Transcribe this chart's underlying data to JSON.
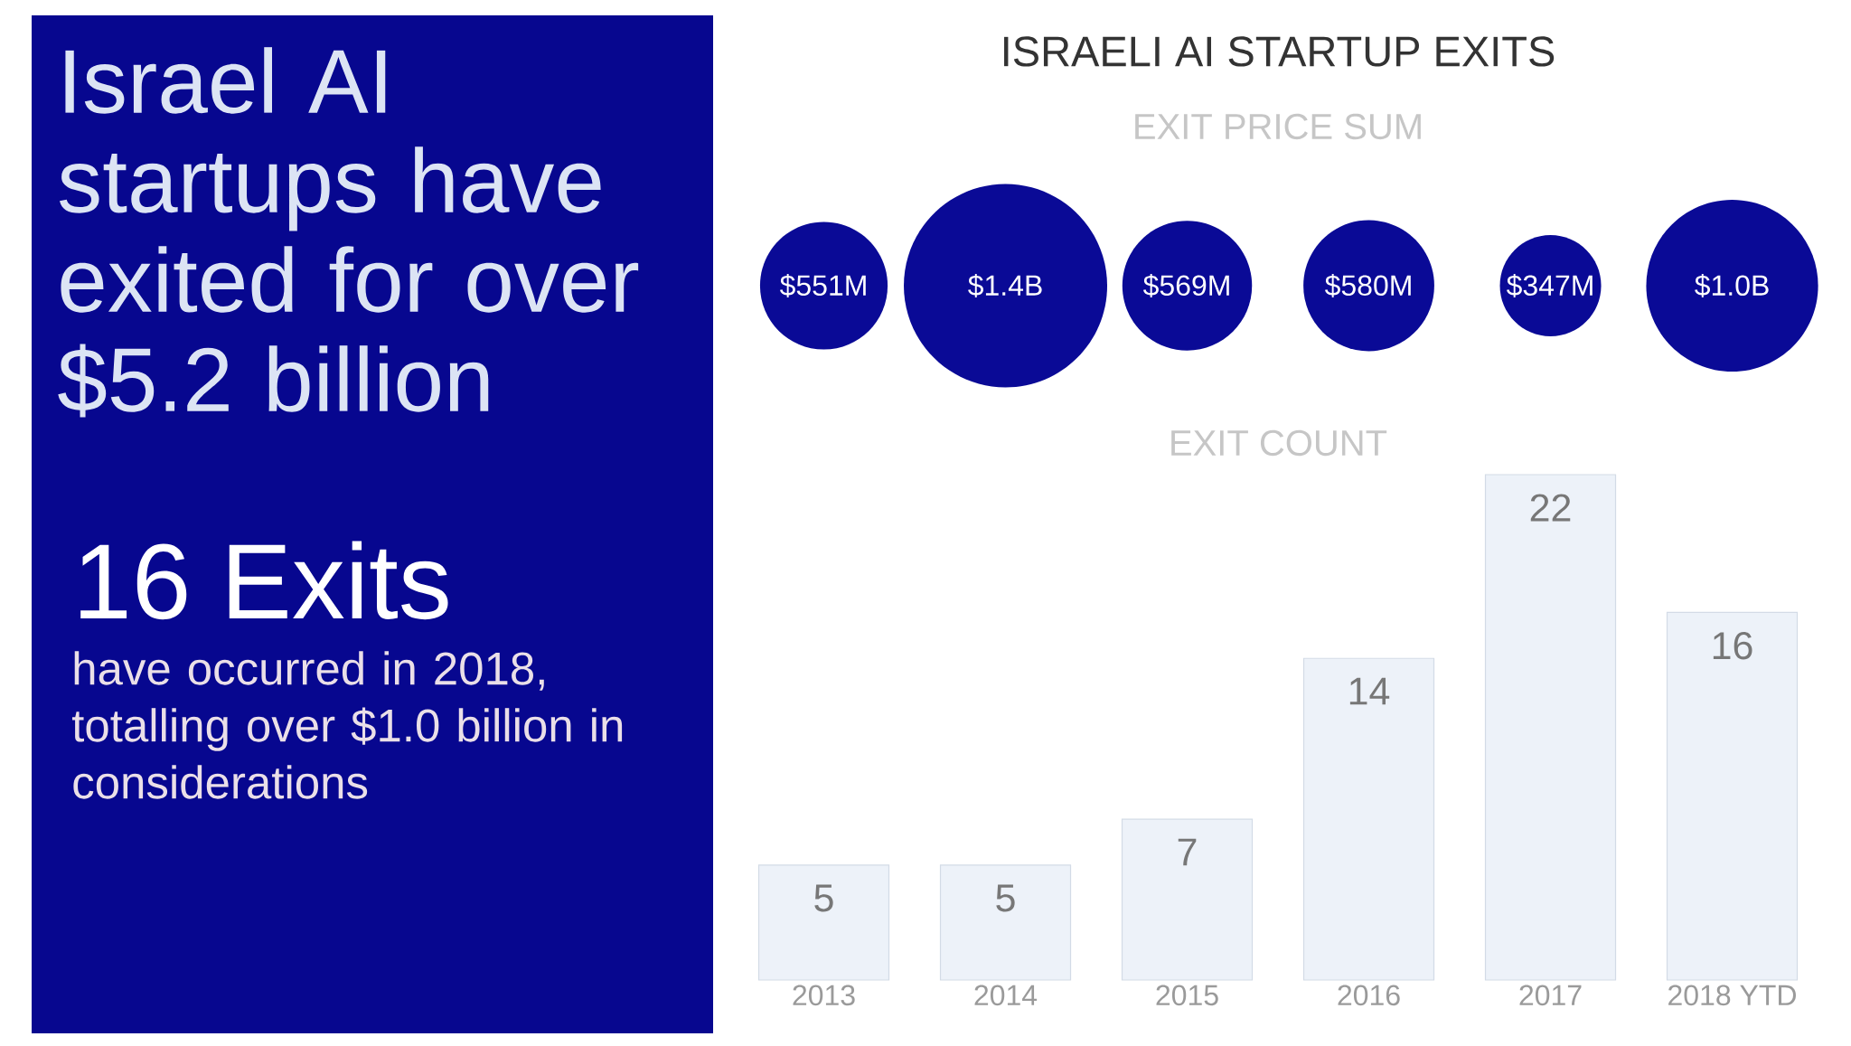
{
  "chart_data": [
    {
      "type": "other",
      "title": "Israel AI startups have exited for over $5.2 billion",
      "subtitle": "16 Exits",
      "annotations": [
        "have occurred in 2018, totalling over $1.0 billion in considerations"
      ]
    },
    {
      "type": "other",
      "title": "ISRAELI AI STARTUP EXITS",
      "subtitle": "EXIT PRICE SUM",
      "values": [
        551000000,
        1400000000,
        569000000,
        580000000,
        347000000,
        1000000000
      ],
      "value_labels": [
        "$551M",
        "$1.4B",
        "$569M",
        "$580M",
        "$347M",
        "$1.0B"
      ],
      "color": "#0a0a96"
    },
    {
      "type": "bar",
      "title": "EXIT COUNT",
      "categories": [
        "2013",
        "2014",
        "2015",
        "2016",
        "2017",
        "2018 YTD"
      ],
      "values": [
        5,
        5,
        7,
        14,
        22,
        16
      ],
      "color": "#edf2f9",
      "data_labels": true,
      "tick_labels": "x"
    }
  ]
}
